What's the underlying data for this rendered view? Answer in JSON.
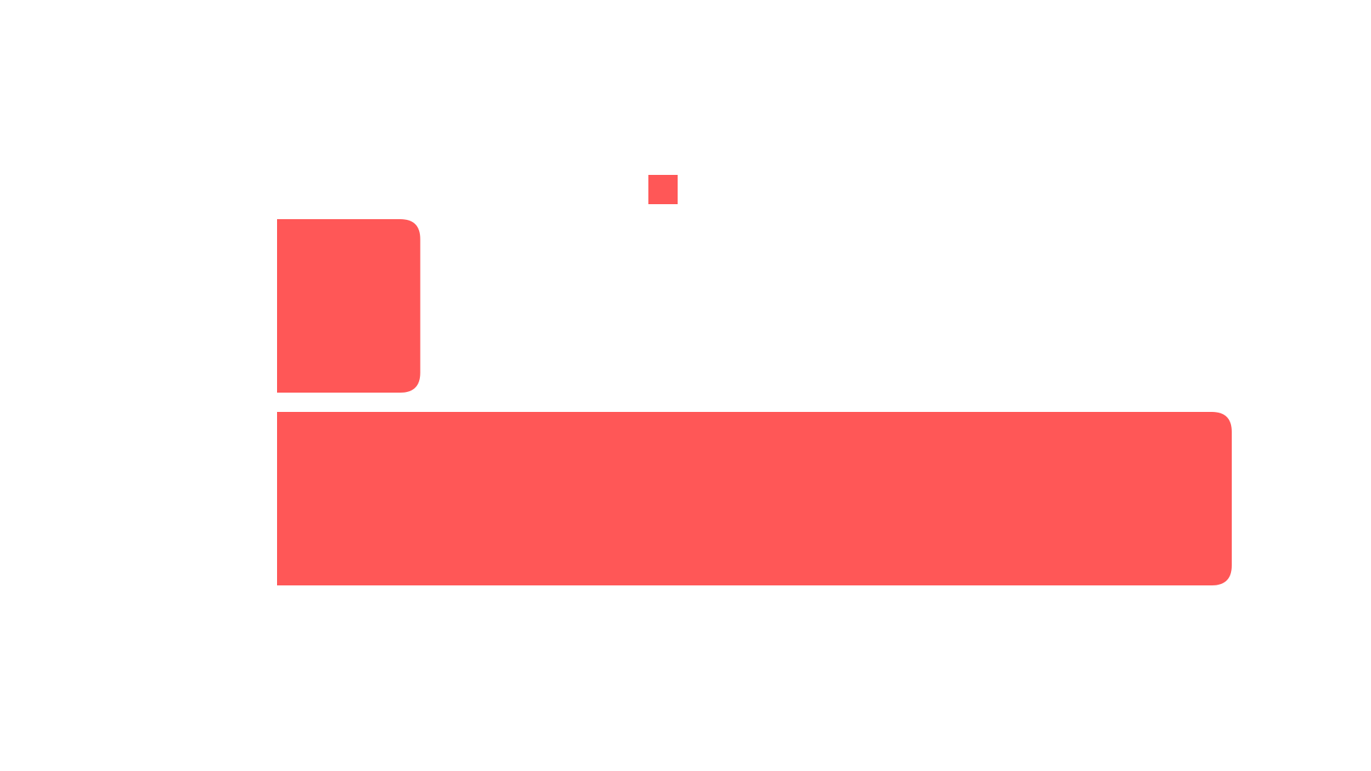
{
  "chart_data": {
    "type": "bar",
    "orientation": "horizontal",
    "categories": [
      "",
      ""
    ],
    "values": [
      15,
      100
    ],
    "xlim": [
      0,
      100
    ],
    "title": "",
    "xlabel": "",
    "ylabel": "",
    "grid": false,
    "legend": "none",
    "colors": {
      "bar": "#ff5757",
      "legend_swatch": "#ff5757",
      "background": "#ffffff"
    },
    "legend_marker": {
      "visible": true,
      "label": ""
    }
  }
}
